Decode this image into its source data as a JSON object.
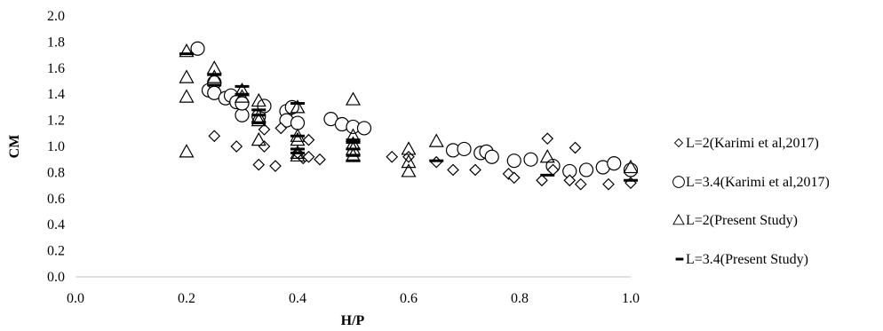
{
  "chart_data": {
    "type": "scatter",
    "title": "",
    "xlabel": "H/P",
    "ylabel": "CM",
    "xlim": [
      0.0,
      1.0
    ],
    "ylim": [
      0.0,
      2.0
    ],
    "xticks": [
      "0.0",
      "0.2",
      "0.4",
      "0.6",
      "0.8",
      "1.0"
    ],
    "yticks": [
      "0.0",
      "0.2",
      "0.4",
      "0.6",
      "0.8",
      "1.0",
      "1.2",
      "1.4",
      "1.6",
      "1.8",
      "2.0"
    ],
    "grid": false,
    "legend_position": "right",
    "series": [
      {
        "name": "L=2(Karimi et al,2017)",
        "marker": "diamond",
        "points": [
          [
            0.25,
            1.08
          ],
          [
            0.29,
            1.0
          ],
          [
            0.33,
            0.86
          ],
          [
            0.34,
            1.13
          ],
          [
            0.34,
            1.0
          ],
          [
            0.36,
            0.85
          ],
          [
            0.37,
            1.14
          ],
          [
            0.4,
            0.95
          ],
          [
            0.41,
            0.91
          ],
          [
            0.42,
            1.05
          ],
          [
            0.42,
            0.92
          ],
          [
            0.44,
            0.9
          ],
          [
            0.57,
            0.92
          ],
          [
            0.6,
            0.92
          ],
          [
            0.65,
            0.88
          ],
          [
            0.68,
            0.82
          ],
          [
            0.72,
            0.82
          ],
          [
            0.78,
            0.79
          ],
          [
            0.79,
            0.76
          ],
          [
            0.84,
            0.74
          ],
          [
            0.85,
            1.06
          ],
          [
            0.86,
            0.82
          ],
          [
            0.89,
            0.74
          ],
          [
            0.9,
            0.99
          ],
          [
            0.91,
            0.71
          ],
          [
            0.96,
            0.71
          ],
          [
            1.0,
            0.72
          ]
        ]
      },
      {
        "name": "L=3.4(Karimi et al,2017)",
        "marker": "circle",
        "points": [
          [
            0.22,
            1.75
          ],
          [
            0.24,
            1.43
          ],
          [
            0.25,
            1.49
          ],
          [
            0.25,
            1.41
          ],
          [
            0.27,
            1.37
          ],
          [
            0.28,
            1.39
          ],
          [
            0.29,
            1.34
          ],
          [
            0.3,
            1.24
          ],
          [
            0.3,
            1.33
          ],
          [
            0.33,
            1.23
          ],
          [
            0.34,
            1.31
          ],
          [
            0.38,
            1.27
          ],
          [
            0.38,
            1.2
          ],
          [
            0.39,
            1.3
          ],
          [
            0.4,
            1.18
          ],
          [
            0.46,
            1.21
          ],
          [
            0.48,
            1.17
          ],
          [
            0.5,
            1.15
          ],
          [
            0.52,
            1.14
          ],
          [
            0.68,
            0.97
          ],
          [
            0.7,
            0.98
          ],
          [
            0.73,
            0.95
          ],
          [
            0.74,
            0.96
          ],
          [
            0.75,
            0.92
          ],
          [
            0.79,
            0.89
          ],
          [
            0.82,
            0.9
          ],
          [
            0.86,
            0.85
          ],
          [
            0.89,
            0.81
          ],
          [
            0.92,
            0.82
          ],
          [
            0.95,
            0.84
          ],
          [
            0.97,
            0.87
          ],
          [
            1.0,
            0.82
          ]
        ]
      },
      {
        "name": "L=2(Present Study)",
        "marker": "triangle",
        "points": [
          [
            0.2,
            1.73
          ],
          [
            0.2,
            1.53
          ],
          [
            0.2,
            1.38
          ],
          [
            0.2,
            0.96
          ],
          [
            0.25,
            1.6
          ],
          [
            0.25,
            1.53
          ],
          [
            0.3,
            1.43
          ],
          [
            0.3,
            1.38
          ],
          [
            0.33,
            1.35
          ],
          [
            0.33,
            1.23
          ],
          [
            0.33,
            1.2
          ],
          [
            0.33,
            1.05
          ],
          [
            0.4,
            1.3
          ],
          [
            0.4,
            1.08
          ],
          [
            0.4,
            1.05
          ],
          [
            0.4,
            0.95
          ],
          [
            0.4,
            0.93
          ],
          [
            0.5,
            1.36
          ],
          [
            0.5,
            1.08
          ],
          [
            0.5,
            1.02
          ],
          [
            0.5,
            0.98
          ],
          [
            0.5,
            0.93
          ],
          [
            0.6,
            0.98
          ],
          [
            0.6,
            0.88
          ],
          [
            0.6,
            0.81
          ],
          [
            0.65,
            1.04
          ],
          [
            0.85,
            0.92
          ],
          [
            1.0,
            0.84
          ]
        ]
      },
      {
        "name": "L=3.4(Present Study)",
        "marker": "dash",
        "points": [
          [
            0.2,
            1.71
          ],
          [
            0.25,
            1.55
          ],
          [
            0.25,
            1.47
          ],
          [
            0.3,
            1.46
          ],
          [
            0.3,
            1.4
          ],
          [
            0.33,
            1.28
          ],
          [
            0.33,
            1.24
          ],
          [
            0.33,
            1.18
          ],
          [
            0.4,
            1.33
          ],
          [
            0.4,
            1.08
          ],
          [
            0.4,
            0.98
          ],
          [
            0.4,
            0.95
          ],
          [
            0.5,
            1.05
          ],
          [
            0.5,
            1.03
          ],
          [
            0.5,
            0.98
          ],
          [
            0.5,
            0.93
          ],
          [
            0.5,
            0.89
          ],
          [
            0.65,
            0.89
          ],
          [
            0.85,
            0.78
          ],
          [
            1.0,
            0.74
          ]
        ]
      }
    ]
  }
}
